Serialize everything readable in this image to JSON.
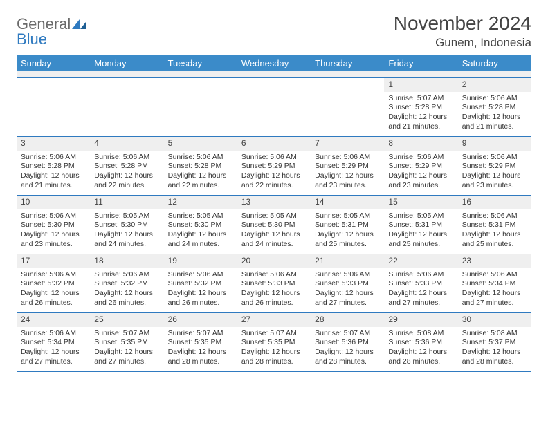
{
  "header": {
    "logo_word1": "General",
    "logo_word2": "Blue",
    "month_title": "November 2024",
    "location": "Gunem, Indonesia"
  },
  "colors": {
    "header_bg": "#3b8bc9",
    "rule": "#2f7ac0",
    "daynum_bg": "#efefef",
    "text": "#333333"
  },
  "days_of_week": [
    "Sunday",
    "Monday",
    "Tuesday",
    "Wednesday",
    "Thursday",
    "Friday",
    "Saturday"
  ],
  "weeks": [
    [
      {
        "n": "",
        "sr": "",
        "ss": "",
        "dl": ""
      },
      {
        "n": "",
        "sr": "",
        "ss": "",
        "dl": ""
      },
      {
        "n": "",
        "sr": "",
        "ss": "",
        "dl": ""
      },
      {
        "n": "",
        "sr": "",
        "ss": "",
        "dl": ""
      },
      {
        "n": "",
        "sr": "",
        "ss": "",
        "dl": ""
      },
      {
        "n": "1",
        "sr": "Sunrise: 5:07 AM",
        "ss": "Sunset: 5:28 PM",
        "dl": "Daylight: 12 hours and 21 minutes."
      },
      {
        "n": "2",
        "sr": "Sunrise: 5:06 AM",
        "ss": "Sunset: 5:28 PM",
        "dl": "Daylight: 12 hours and 21 minutes."
      }
    ],
    [
      {
        "n": "3",
        "sr": "Sunrise: 5:06 AM",
        "ss": "Sunset: 5:28 PM",
        "dl": "Daylight: 12 hours and 21 minutes."
      },
      {
        "n": "4",
        "sr": "Sunrise: 5:06 AM",
        "ss": "Sunset: 5:28 PM",
        "dl": "Daylight: 12 hours and 22 minutes."
      },
      {
        "n": "5",
        "sr": "Sunrise: 5:06 AM",
        "ss": "Sunset: 5:28 PM",
        "dl": "Daylight: 12 hours and 22 minutes."
      },
      {
        "n": "6",
        "sr": "Sunrise: 5:06 AM",
        "ss": "Sunset: 5:29 PM",
        "dl": "Daylight: 12 hours and 22 minutes."
      },
      {
        "n": "7",
        "sr": "Sunrise: 5:06 AM",
        "ss": "Sunset: 5:29 PM",
        "dl": "Daylight: 12 hours and 23 minutes."
      },
      {
        "n": "8",
        "sr": "Sunrise: 5:06 AM",
        "ss": "Sunset: 5:29 PM",
        "dl": "Daylight: 12 hours and 23 minutes."
      },
      {
        "n": "9",
        "sr": "Sunrise: 5:06 AM",
        "ss": "Sunset: 5:29 PM",
        "dl": "Daylight: 12 hours and 23 minutes."
      }
    ],
    [
      {
        "n": "10",
        "sr": "Sunrise: 5:06 AM",
        "ss": "Sunset: 5:30 PM",
        "dl": "Daylight: 12 hours and 23 minutes."
      },
      {
        "n": "11",
        "sr": "Sunrise: 5:05 AM",
        "ss": "Sunset: 5:30 PM",
        "dl": "Daylight: 12 hours and 24 minutes."
      },
      {
        "n": "12",
        "sr": "Sunrise: 5:05 AM",
        "ss": "Sunset: 5:30 PM",
        "dl": "Daylight: 12 hours and 24 minutes."
      },
      {
        "n": "13",
        "sr": "Sunrise: 5:05 AM",
        "ss": "Sunset: 5:30 PM",
        "dl": "Daylight: 12 hours and 24 minutes."
      },
      {
        "n": "14",
        "sr": "Sunrise: 5:05 AM",
        "ss": "Sunset: 5:31 PM",
        "dl": "Daylight: 12 hours and 25 minutes."
      },
      {
        "n": "15",
        "sr": "Sunrise: 5:05 AM",
        "ss": "Sunset: 5:31 PM",
        "dl": "Daylight: 12 hours and 25 minutes."
      },
      {
        "n": "16",
        "sr": "Sunrise: 5:06 AM",
        "ss": "Sunset: 5:31 PM",
        "dl": "Daylight: 12 hours and 25 minutes."
      }
    ],
    [
      {
        "n": "17",
        "sr": "Sunrise: 5:06 AM",
        "ss": "Sunset: 5:32 PM",
        "dl": "Daylight: 12 hours and 26 minutes."
      },
      {
        "n": "18",
        "sr": "Sunrise: 5:06 AM",
        "ss": "Sunset: 5:32 PM",
        "dl": "Daylight: 12 hours and 26 minutes."
      },
      {
        "n": "19",
        "sr": "Sunrise: 5:06 AM",
        "ss": "Sunset: 5:32 PM",
        "dl": "Daylight: 12 hours and 26 minutes."
      },
      {
        "n": "20",
        "sr": "Sunrise: 5:06 AM",
        "ss": "Sunset: 5:33 PM",
        "dl": "Daylight: 12 hours and 26 minutes."
      },
      {
        "n": "21",
        "sr": "Sunrise: 5:06 AM",
        "ss": "Sunset: 5:33 PM",
        "dl": "Daylight: 12 hours and 27 minutes."
      },
      {
        "n": "22",
        "sr": "Sunrise: 5:06 AM",
        "ss": "Sunset: 5:33 PM",
        "dl": "Daylight: 12 hours and 27 minutes."
      },
      {
        "n": "23",
        "sr": "Sunrise: 5:06 AM",
        "ss": "Sunset: 5:34 PM",
        "dl": "Daylight: 12 hours and 27 minutes."
      }
    ],
    [
      {
        "n": "24",
        "sr": "Sunrise: 5:06 AM",
        "ss": "Sunset: 5:34 PM",
        "dl": "Daylight: 12 hours and 27 minutes."
      },
      {
        "n": "25",
        "sr": "Sunrise: 5:07 AM",
        "ss": "Sunset: 5:35 PM",
        "dl": "Daylight: 12 hours and 27 minutes."
      },
      {
        "n": "26",
        "sr": "Sunrise: 5:07 AM",
        "ss": "Sunset: 5:35 PM",
        "dl": "Daylight: 12 hours and 28 minutes."
      },
      {
        "n": "27",
        "sr": "Sunrise: 5:07 AM",
        "ss": "Sunset: 5:35 PM",
        "dl": "Daylight: 12 hours and 28 minutes."
      },
      {
        "n": "28",
        "sr": "Sunrise: 5:07 AM",
        "ss": "Sunset: 5:36 PM",
        "dl": "Daylight: 12 hours and 28 minutes."
      },
      {
        "n": "29",
        "sr": "Sunrise: 5:08 AM",
        "ss": "Sunset: 5:36 PM",
        "dl": "Daylight: 12 hours and 28 minutes."
      },
      {
        "n": "30",
        "sr": "Sunrise: 5:08 AM",
        "ss": "Sunset: 5:37 PM",
        "dl": "Daylight: 12 hours and 28 minutes."
      }
    ]
  ]
}
